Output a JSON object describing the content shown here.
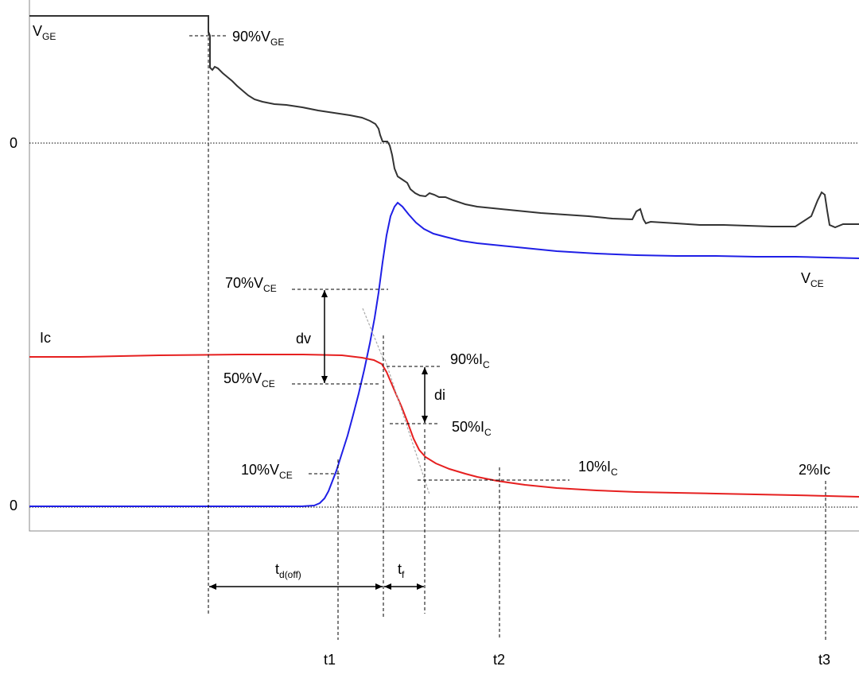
{
  "labels": {
    "vge": {
      "main": "V",
      "sub": "GE"
    },
    "pct90_vge": {
      "main": "90%V",
      "sub": "GE"
    },
    "zero_top": "0",
    "zero_bottom": "0",
    "vce": {
      "main": "V",
      "sub": "CE"
    },
    "pct70_vce": {
      "main": "70%V",
      "sub": "CE"
    },
    "pct50_vce": {
      "main": "50%V",
      "sub": "CE"
    },
    "pct10_vce": {
      "main": "10%V",
      "sub": "CE"
    },
    "ic": "Ic",
    "dv": "dv",
    "di": "di",
    "pct90_ic": {
      "main": "90%I",
      "sub": "C"
    },
    "pct50_ic": {
      "main": "50%I",
      "sub": "C"
    },
    "pct10_ic": {
      "main": "10%I",
      "sub": "C"
    },
    "pct2_ic": "2%Ic",
    "td_off": {
      "main": "t",
      "sub": "d(off)"
    },
    "tf": {
      "main": "t",
      "sub": "f"
    },
    "t1": "t1",
    "t2": "t2",
    "t3": "t3"
  },
  "colors": {
    "vge": "#333333",
    "vce": "#1f1fe6",
    "ic": "#e62020",
    "frame": "#888888"
  }
}
